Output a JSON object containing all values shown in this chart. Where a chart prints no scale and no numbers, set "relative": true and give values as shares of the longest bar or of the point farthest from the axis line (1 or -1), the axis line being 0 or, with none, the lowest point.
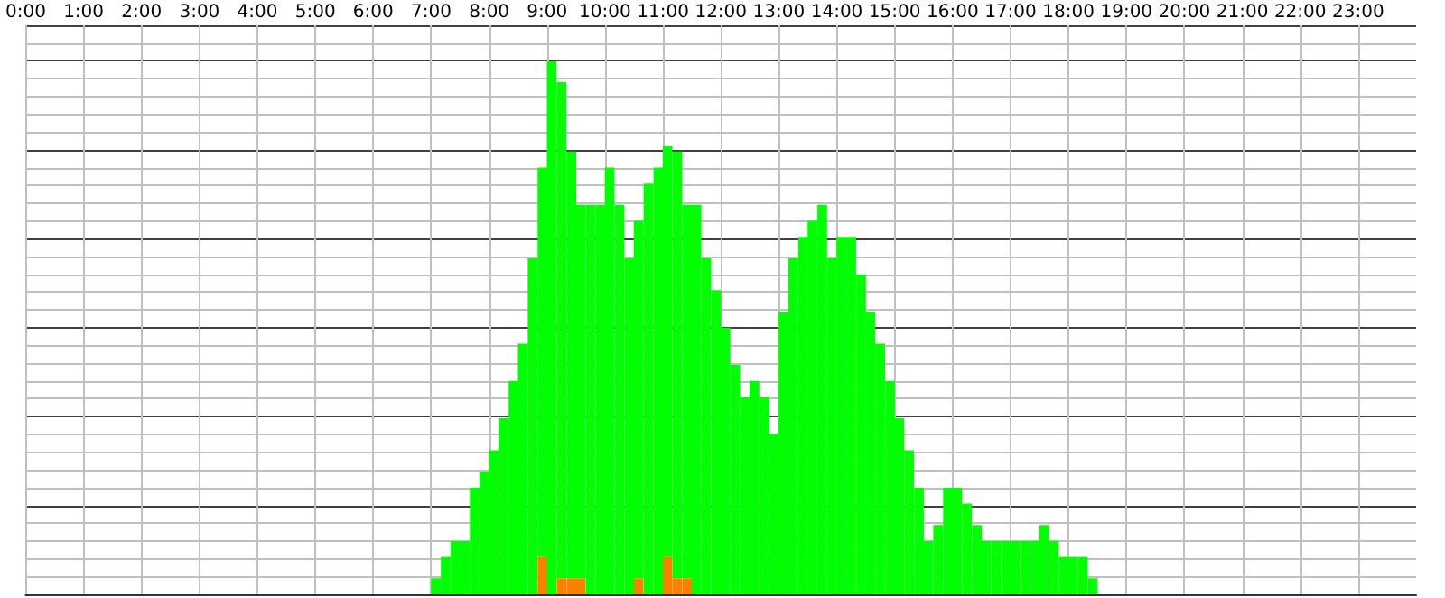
{
  "chart_data": {
    "type": "bar",
    "relative": true,
    "stacked": true,
    "tick_labels": "x",
    "grid": true,
    "xlim": [
      0,
      24
    ],
    "xticks": [
      {
        "value": 0,
        "label": "0:00"
      },
      {
        "value": 1,
        "label": "1:00"
      },
      {
        "value": 2,
        "label": "2:00"
      },
      {
        "value": 3,
        "label": "3:00"
      },
      {
        "value": 4,
        "label": "4:00"
      },
      {
        "value": 5,
        "label": "5:00"
      },
      {
        "value": 6,
        "label": "6:00"
      },
      {
        "value": 7,
        "label": "7:00"
      },
      {
        "value": 8,
        "label": "8:00"
      },
      {
        "value": 9,
        "label": "9:00"
      },
      {
        "value": 10,
        "label": "10:00"
      },
      {
        "value": 11,
        "label": "11:00"
      },
      {
        "value": 12,
        "label": "12:00"
      },
      {
        "value": 13,
        "label": "13:00"
      },
      {
        "value": 14,
        "label": "14:00"
      },
      {
        "value": 15,
        "label": "15:00"
      },
      {
        "value": 16,
        "label": "16:00"
      },
      {
        "value": 17,
        "label": "17:00"
      },
      {
        "value": 18,
        "label": "18:00"
      },
      {
        "value": 19,
        "label": "19:00"
      },
      {
        "value": 20,
        "label": "20:00"
      },
      {
        "value": 21,
        "label": "21:00"
      },
      {
        "value": 22,
        "label": "22:00"
      },
      {
        "value": 23,
        "label": "23:00"
      }
    ],
    "x": [
      7.08,
      7.25,
      7.42,
      7.58,
      7.75,
      7.92,
      8.08,
      8.25,
      8.42,
      8.58,
      8.75,
      8.92,
      9.08,
      9.25,
      9.42,
      9.58,
      9.75,
      9.92,
      10.08,
      10.25,
      10.42,
      10.58,
      10.75,
      10.92,
      11.08,
      11.25,
      11.42,
      11.58,
      11.75,
      11.92,
      12.08,
      12.25,
      12.42,
      12.58,
      12.75,
      12.92,
      13.08,
      13.25,
      13.42,
      13.58,
      13.75,
      13.92,
      14.08,
      14.25,
      14.42,
      14.58,
      14.75,
      14.92,
      15.08,
      15.25,
      15.42,
      15.58,
      15.75,
      15.92,
      16.08,
      16.25,
      16.42,
      16.58,
      16.75,
      16.92,
      17.08,
      17.25,
      17.42,
      17.58,
      17.75,
      17.92,
      18.08,
      18.25,
      18.42
    ],
    "series": [
      {
        "color": "#ff8000",
        "values": [
          null,
          null,
          null,
          null,
          null,
          null,
          null,
          null,
          null,
          null,
          null,
          0.07,
          null,
          0.03,
          0.03,
          0.03,
          null,
          null,
          null,
          null,
          null,
          0.03,
          null,
          null,
          0.07,
          0.03,
          0.03,
          null,
          null,
          null,
          null,
          null,
          null,
          null,
          null,
          null,
          null,
          null,
          null,
          null,
          null,
          null,
          null,
          null,
          null,
          null,
          null,
          null,
          null,
          null,
          null,
          null,
          null,
          null,
          null,
          null,
          null,
          null,
          null,
          null,
          null,
          null,
          null,
          null,
          null,
          null,
          null,
          null,
          null
        ]
      },
      {
        "color": "#00ff00",
        "values": [
          0.03,
          0.07,
          0.1,
          0.1,
          0.2,
          0.23,
          0.27,
          0.33,
          0.4,
          0.47,
          0.63,
          0.73,
          1,
          0.93,
          0.8,
          0.7,
          0.73,
          0.73,
          0.8,
          0.73,
          0.63,
          0.67,
          0.77,
          0.8,
          0.77,
          0.8,
          0.7,
          0.73,
          0.63,
          0.57,
          0.5,
          0.43,
          0.37,
          0.4,
          0.37,
          0.3,
          0.53,
          0.63,
          0.67,
          0.7,
          0.73,
          0.63,
          0.67,
          0.67,
          0.6,
          0.53,
          0.47,
          0.4,
          0.33,
          0.27,
          0.2,
          0.1,
          0.13,
          0.2,
          0.2,
          0.17,
          0.13,
          0.1,
          0.1,
          0.1,
          0.1,
          0.1,
          0.1,
          0.13,
          0.1,
          0.07,
          0.07,
          0.07,
          0.03
        ]
      }
    ]
  }
}
